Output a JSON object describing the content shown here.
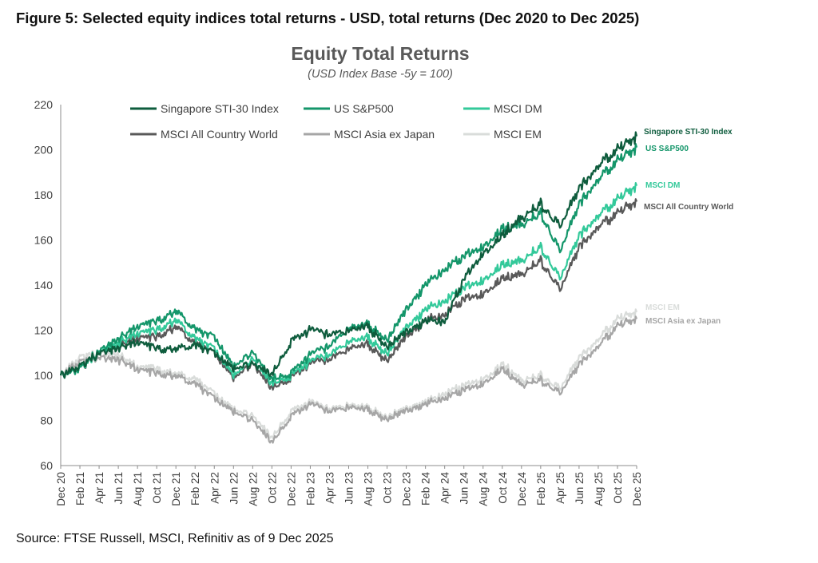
{
  "figure_title": "Figure 5: Selected equity indices total returns - USD, total returns (Dec 2020 to Dec 2025)",
  "source": "Source: FTSE Russell, MSCI, Refinitiv as of 9 Dec 2025",
  "chart_data": {
    "type": "line",
    "title": "Equity Total Returns",
    "subtitle": "(USD Index Base -5y = 100)",
    "xlabel": "",
    "ylabel": "",
    "ylim": [
      60,
      220
    ],
    "yticks": [
      60,
      80,
      100,
      120,
      140,
      160,
      180,
      200,
      220
    ],
    "grid": false,
    "legend_position": "top",
    "categories": [
      "Dec 20",
      "Feb 21",
      "Apr 21",
      "Jun 21",
      "Aug 21",
      "Oct 21",
      "Dec 21",
      "Feb 22",
      "Apr 22",
      "Jun 22",
      "Aug 22",
      "Oct 22",
      "Dec 22",
      "Feb 23",
      "Apr 23",
      "Jun 23",
      "Aug 23",
      "Oct 23",
      "Dec 23",
      "Feb 24",
      "Apr 24",
      "Jun 24",
      "Aug 24",
      "Oct 24",
      "Dec 24",
      "Feb 25",
      "Apr 25",
      "Jun 25",
      "Aug 25",
      "Oct 25",
      "Dec 25"
    ],
    "series": [
      {
        "name": "Singapore STI-30 Index",
        "end_label": "Singapore STI-30 Index",
        "color": "#0E5C3D",
        "values": [
          100,
          104,
          110,
          112,
          115,
          112,
          112,
          113,
          110,
          103,
          105,
          100,
          115,
          120,
          118,
          120,
          122,
          112,
          120,
          124,
          124,
          142,
          155,
          162,
          170,
          176,
          166,
          183,
          193,
          200,
          206
        ]
      },
      {
        "name": "US S&P500",
        "end_label": "US S&P500",
        "color": "#14966A",
        "values": [
          100,
          103,
          111,
          116,
          122,
          124,
          129,
          120,
          117,
          104,
          110,
          98,
          101,
          109,
          113,
          121,
          123,
          115,
          130,
          140,
          147,
          152,
          158,
          165,
          167,
          172,
          155,
          176,
          187,
          195,
          201
        ]
      },
      {
        "name": "MSCI DM",
        "end_label": "MSCI DM",
        "color": "#33C99A",
        "values": [
          100,
          103,
          110,
          114,
          119,
          120,
          125,
          116,
          112,
          100,
          107,
          96,
          100,
          106,
          109,
          115,
          117,
          109,
          122,
          129,
          133,
          138,
          143,
          149,
          151,
          157,
          143,
          162,
          171,
          178,
          184
        ]
      },
      {
        "name": "MSCI All Country World",
        "end_label": "MSCI All Country World",
        "color": "#595959",
        "values": [
          100,
          103,
          110,
          113,
          117,
          117,
          122,
          114,
          110,
          99,
          105,
          94,
          99,
          105,
          107,
          112,
          114,
          106,
          118,
          124,
          127,
          133,
          137,
          143,
          145,
          151,
          138,
          157,
          166,
          172,
          177
        ]
      },
      {
        "name": "MSCI Asia ex Japan",
        "end_label": "MSCI Asia ex Japan",
        "color": "#A6A6A6",
        "values": [
          100,
          106,
          108,
          107,
          103,
          101,
          100,
          96,
          90,
          84,
          80,
          70,
          82,
          87,
          84,
          86,
          85,
          80,
          85,
          87,
          90,
          93,
          97,
          103,
          96,
          98,
          92,
          105,
          113,
          122,
          125
        ]
      },
      {
        "name": "MSCI EM",
        "end_label": "MSCI EM",
        "color": "#D9DCDA",
        "values": [
          100,
          108,
          110,
          109,
          104,
          103,
          101,
          98,
          92,
          85,
          82,
          72,
          84,
          88,
          85,
          87,
          86,
          81,
          86,
          88,
          92,
          95,
          99,
          105,
          98,
          100,
          94,
          108,
          116,
          125,
          128
        ]
      }
    ]
  }
}
